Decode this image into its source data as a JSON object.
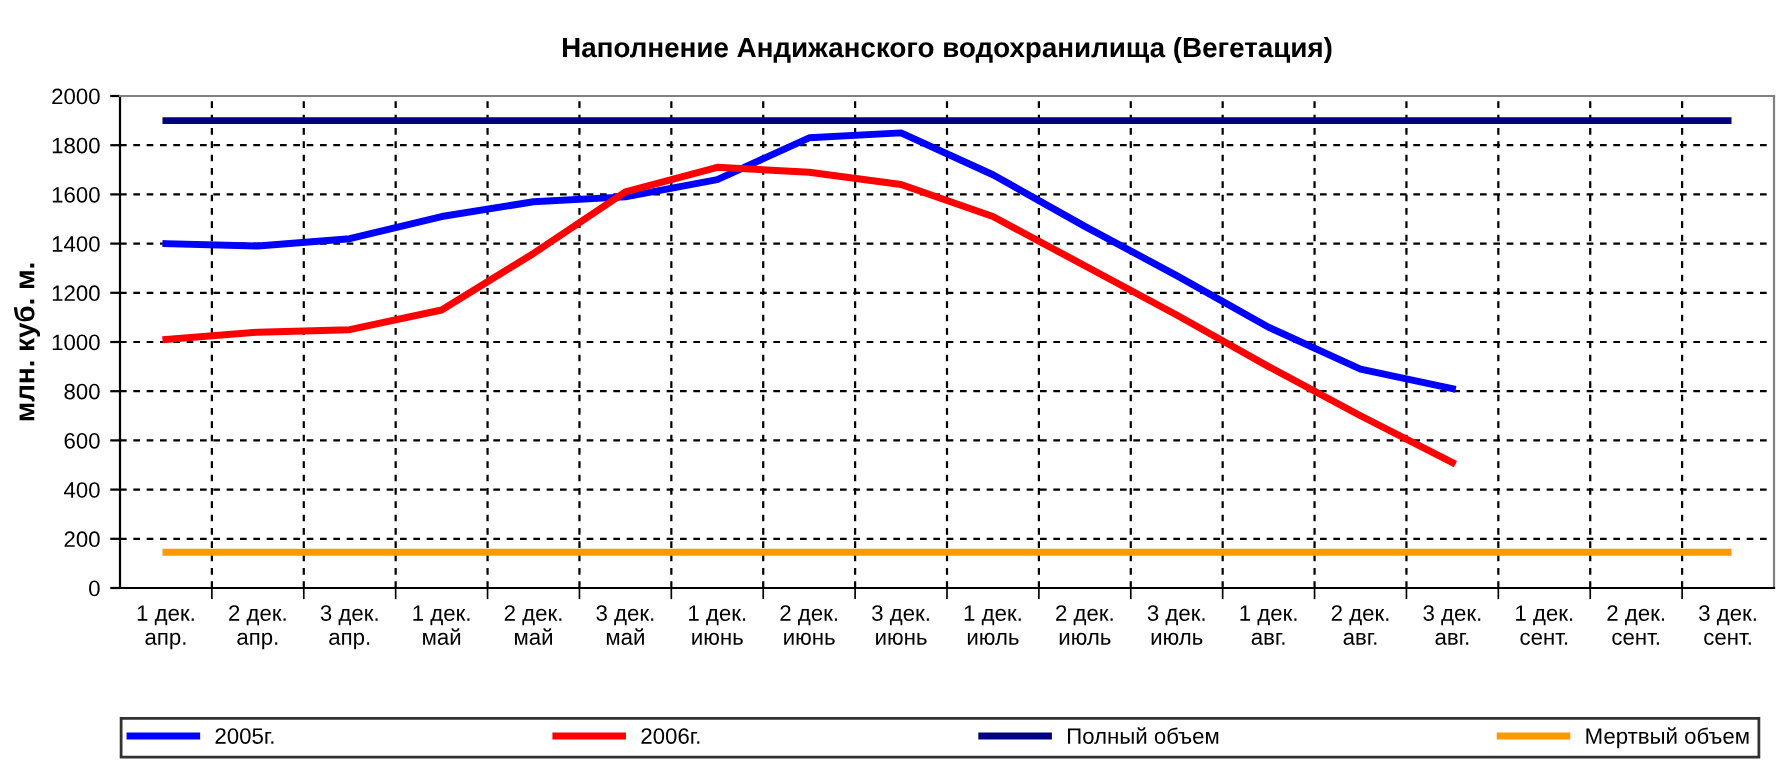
{
  "chart_data": {
    "type": "line",
    "title": "Наполнение Андижанского водохранилища (Вегетация)",
    "ylabel": "млн. куб. м.",
    "categories": [
      "1 дек.\nапр.",
      "2 дек.\nапр.",
      "3 дек.\nапр.",
      "1 дек.\nмай",
      "2 дек.\nмай",
      "3 дек.\nмай",
      "1 дек.\nиюнь",
      "2 дек.\nиюнь",
      "3 дек.\nиюнь",
      "1 дек.\nиюль",
      "2 дек.\nиюль",
      "3 дек.\nиюль",
      "1 дек.\nавг.",
      "2 дек.\nавг.",
      "3 дек.\nавг.",
      "1 дек.\nсент.",
      "2 дек.\nсент.",
      "3 дек.\nсент."
    ],
    "series": [
      {
        "name": "2005г.",
        "color": "#0000ff",
        "values": [
          1400,
          1390,
          1420,
          1510,
          1570,
          1590,
          1660,
          1830,
          1850,
          1680,
          1470,
          1270,
          1060,
          890,
          810,
          null,
          null,
          null
        ]
      },
      {
        "name": "2006г.",
        "color": "#ff0000",
        "values": [
          1010,
          1040,
          1050,
          1130,
          1360,
          1610,
          1710,
          1690,
          1640,
          1510,
          1310,
          1110,
          900,
          700,
          510,
          null,
          null,
          null
        ]
      },
      {
        "name": "Полный объем",
        "color": "#000080",
        "values": [
          1900,
          1900,
          1900,
          1900,
          1900,
          1900,
          1900,
          1900,
          1900,
          1900,
          1900,
          1900,
          1900,
          1900,
          1900,
          1900,
          1900,
          1900
        ]
      },
      {
        "name": "Мертвый объем",
        "color": "#ff9900",
        "values": [
          145,
          145,
          145,
          145,
          145,
          145,
          145,
          145,
          145,
          145,
          145,
          145,
          145,
          145,
          145,
          145,
          145,
          145
        ]
      }
    ],
    "ylim": [
      0,
      2000
    ],
    "yticks": [
      0,
      200,
      400,
      600,
      800,
      1000,
      1200,
      1400,
      1600,
      1800,
      2000
    ],
    "grid": true,
    "legend": "bottom",
    "marker": "none",
    "line_style": "solid"
  }
}
